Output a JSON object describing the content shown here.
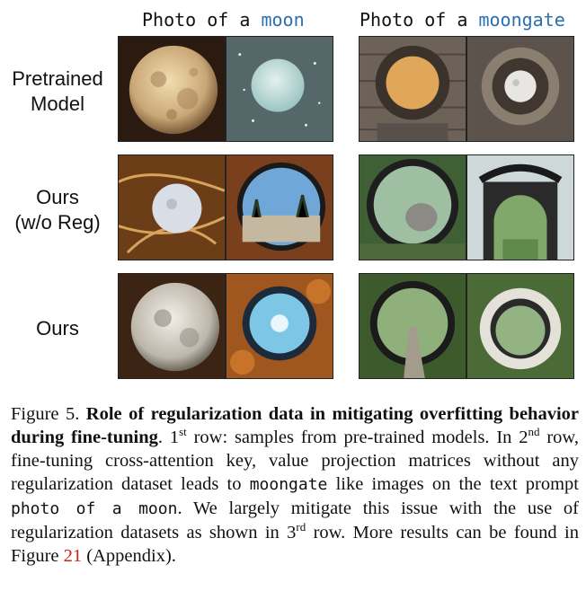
{
  "columns": [
    {
      "prefix": "Photo of a ",
      "keyword": "moon"
    },
    {
      "prefix": "Photo of a ",
      "keyword": "moongate"
    }
  ],
  "rows": [
    {
      "label_line1": "Pretrained",
      "label_line2": "Model"
    },
    {
      "label_line1": "Ours",
      "label_line2": "(w/o Reg)"
    },
    {
      "label_line1": "Ours",
      "label_line2": ""
    }
  ],
  "caption": {
    "figure_label": "Figure 5.",
    "title": "Role of regularization data in mitigating overfitting behavior during fine-tuning",
    "p1": ". 1",
    "sup1": "st",
    "p2": " row: samples from pre-trained models. In 2",
    "sup2": "nd",
    "p3": " row, fine-tuning cross-attention key, value projection matrices without any regularization dataset leads to ",
    "code1": "moongate",
    "p4": " like images on the text prompt ",
    "code2": "photo of a moon",
    "p5": ". We largely mitigate this issue with the use of regularization datasets as shown in 3",
    "sup3": "rd",
    "p6": " row. More results can be found in Figure ",
    "fig_ref": "21",
    "p7": " (Appendix)."
  },
  "colors": {
    "keyword": "#2a6fb0",
    "figure_ref": "#d0201a"
  }
}
